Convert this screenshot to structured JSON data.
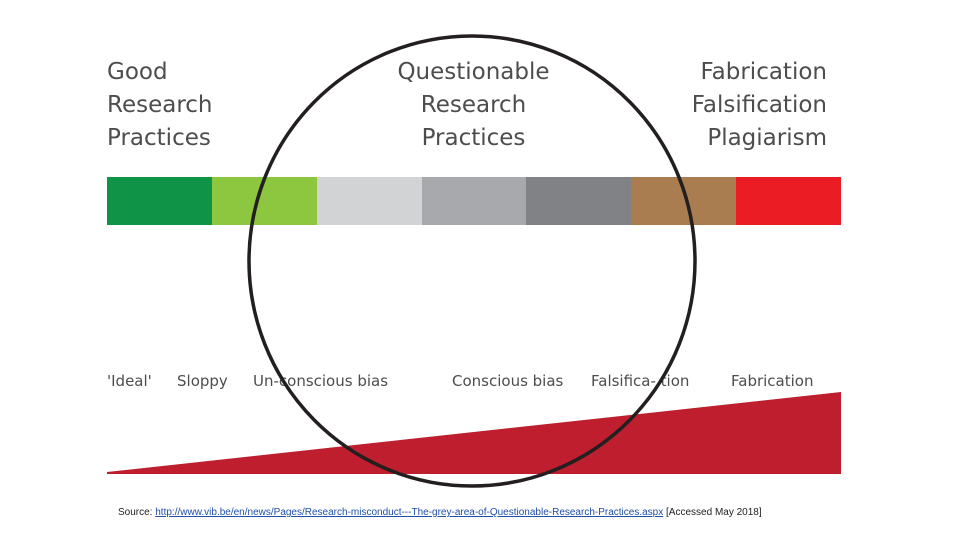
{
  "headings": {
    "left": "Good\nResearch\nPractices",
    "center": "Questionable\nResearch\nPractices",
    "right": "Fabrication\nFalsification\nPlagiarism"
  },
  "spectrum_colors": [
    "#0f9347",
    "#8dc63f",
    "#d1d3d4",
    "#a7a9ac",
    "#808285",
    "#a97d50",
    "#ec1c24"
  ],
  "scale_labels": [
    "'Ideal'",
    "Sloppy",
    "Un-conscious bias",
    "Conscious bias",
    "Falsifica- tion",
    "Fabrication"
  ],
  "wedge_color": "#be1e2d",
  "circle_color": "#231f20",
  "source": {
    "prefix": "Source: ",
    "link": "http://www.vib.be/en/news/Pages/Research-misconduct---The-grey-area-of-Questionable-Research-Practices.aspx",
    "suffix": " [Accessed May 2018]"
  }
}
